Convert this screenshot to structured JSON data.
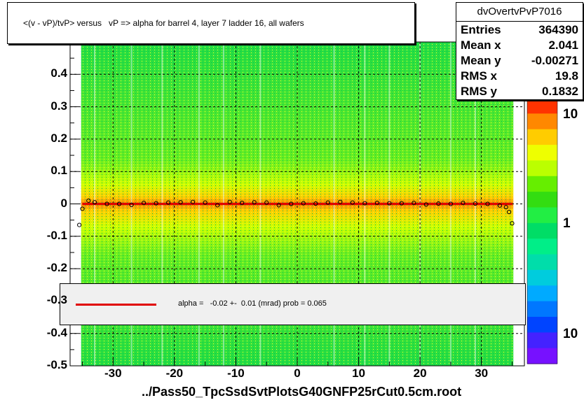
{
  "chart_data": {
    "type": "heatmap",
    "title": "<(v - vP)/tvP> versus   vP => alpha for barrel 4, layer 7 ladder 16, all wafers",
    "xlabel": "../Pass50_TpcSsdSvtPlotsG40GNFP25rCut0.5cm.root",
    "ylabel": "",
    "xlim": [
      -37,
      37
    ],
    "ylim": [
      -0.5,
      0.5
    ],
    "x_ticks": [
      "-30",
      "-20",
      "-10",
      "0",
      "10",
      "20",
      "30"
    ],
    "y_ticks": [
      "-0.5",
      "-0.4",
      "-0.3",
      "-0.2",
      "-0.1",
      "0",
      "0.1",
      "0.2",
      "0.3",
      "0.4"
    ],
    "z_ticks": [
      "10",
      "1",
      "10"
    ],
    "grid": true,
    "stats": {
      "name": "dvOvertvPvP7016",
      "rows": [
        {
          "label": "Entries",
          "value": "364390"
        },
        {
          "label": "Mean x",
          "value": "2.041"
        },
        {
          "label": "Mean y",
          "value": "-0.00271"
        },
        {
          "label": "RMS x",
          "value": "19.8"
        },
        {
          "label": "RMS y",
          "value": "0.1832"
        }
      ]
    },
    "fit": {
      "text": "alpha =   -0.02 +-  0.01 (mrad) prob = 0.065",
      "color": "#e00000"
    },
    "profile": {
      "x": [
        -35.5,
        -35,
        -34,
        -33,
        -31,
        -29,
        -27,
        -25,
        -23,
        -21,
        -19,
        -17,
        -15,
        -13,
        -11,
        -9,
        -7,
        -5,
        -3,
        -1,
        1,
        3,
        5,
        7,
        9,
        11,
        13,
        15,
        17,
        19,
        21,
        23,
        25,
        27,
        29,
        31,
        33,
        34,
        34.5,
        35
      ],
      "y": [
        -0.065,
        -0.015,
        0.01,
        0.005,
        0.0,
        0.0,
        -0.003,
        0.003,
        0.002,
        0.004,
        0.005,
        0.006,
        0.004,
        -0.004,
        0.006,
        0.003,
        0.005,
        0.004,
        -0.004,
        0.0,
        0.002,
        0.001,
        0.004,
        0.006,
        0.004,
        0.002,
        0.003,
        0.002,
        0.002,
        0.003,
        -0.002,
        0.001,
        0.0,
        0.003,
        0.001,
        0.0,
        -0.005,
        -0.01,
        -0.025,
        -0.06
      ]
    },
    "colors": {
      "low": "#00cc66",
      "mid": "#ffff00",
      "high": "#ff4400",
      "marker": "#000000"
    }
  }
}
